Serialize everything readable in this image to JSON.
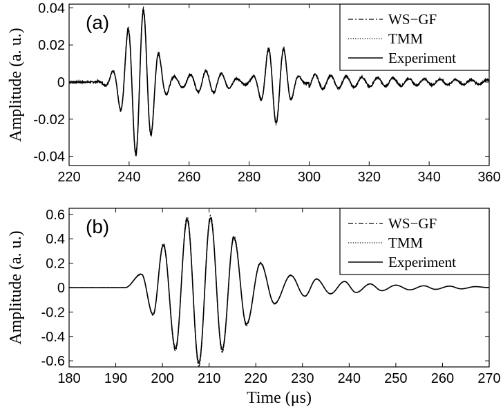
{
  "chart_data": [
    {
      "type": "line",
      "panel_label": "(a)",
      "ylabel": "Amplitude (a. u.)",
      "xlabel": "",
      "xlim": [
        220,
        360
      ],
      "ylim": [
        -0.045,
        0.042
      ],
      "x_ticks": [
        220,
        240,
        260,
        280,
        300,
        320,
        340,
        360
      ],
      "x_tick_labels": [
        "220",
        "240",
        "260",
        "280",
        "300",
        "320",
        "340",
        "360"
      ],
      "y_ticks": [
        -0.04,
        -0.02,
        0,
        0.02,
        0.04
      ],
      "y_tick_labels": [
        "-0.04",
        "-0.02",
        "0",
        "0.02",
        "0.04"
      ],
      "grid": false,
      "legend_position": "top-right",
      "series": [
        {
          "name": "WS−GF",
          "style": "dash-dot",
          "color": "#000000"
        },
        {
          "name": "TMM",
          "style": "dotted",
          "color": "#000000"
        },
        {
          "name": "Experiment",
          "style": "solid",
          "color": "#000000"
        }
      ],
      "waveform": {
        "x_start": 220,
        "x_end": 360,
        "period": 5.2,
        "segment1": {
          "center": 243.5,
          "width": 6.5,
          "amplitude": 0.04
        },
        "segment2": {
          "center": 289,
          "width": 5.5,
          "amplitude": 0.022
        },
        "tail": {
          "start": 300,
          "amplitude": 0.004
        },
        "noise": 0.0009
      }
    },
    {
      "type": "line",
      "panel_label": "(b)",
      "ylabel": "Amplitude (a. u.)",
      "xlabel": "Time (μs)",
      "xlim": [
        180,
        270
      ],
      "ylim": [
        -0.65,
        0.65
      ],
      "x_ticks": [
        180,
        190,
        200,
        210,
        220,
        230,
        240,
        250,
        260,
        270
      ],
      "x_tick_labels": [
        "180",
        "190",
        "200",
        "210",
        "220",
        "230",
        "240",
        "250",
        "260",
        "270"
      ],
      "y_ticks": [
        -0.6,
        -0.4,
        -0.2,
        0,
        0.2,
        0.4,
        0.6
      ],
      "y_tick_labels": [
        "-0.6",
        "-0.4",
        "-0.2",
        "0",
        "0.2",
        "0.4",
        "0.6"
      ],
      "grid": false,
      "legend_position": "top-right",
      "series": [
        {
          "name": "WS−GF",
          "style": "dash-dot",
          "color": "#000000"
        },
        {
          "name": "TMM",
          "style": "dotted",
          "color": "#000000"
        },
        {
          "name": "Experiment",
          "style": "solid",
          "color": "#000000"
        }
      ],
      "waveform": {
        "x_start": 180,
        "x_end": 270,
        "period": 5.2,
        "onset": 192,
        "peaks": [
          {
            "x": 195.5,
            "y": 0.11
          },
          {
            "x": 198,
            "y": -0.22
          },
          {
            "x": 200.2,
            "y": 0.35
          },
          {
            "x": 202.8,
            "y": -0.5
          },
          {
            "x": 205.3,
            "y": 0.56
          },
          {
            "x": 207.8,
            "y": -0.62
          },
          {
            "x": 210.3,
            "y": 0.57
          },
          {
            "x": 212.8,
            "y": -0.51
          },
          {
            "x": 215.3,
            "y": 0.41
          },
          {
            "x": 218,
            "y": -0.3
          },
          {
            "x": 221,
            "y": 0.2
          },
          {
            "x": 224,
            "y": -0.13
          },
          {
            "x": 227.5,
            "y": 0.1
          },
          {
            "x": 230.5,
            "y": -0.07
          },
          {
            "x": 233,
            "y": 0.07
          },
          {
            "x": 236,
            "y": -0.05
          },
          {
            "x": 239,
            "y": 0.05
          },
          {
            "x": 241.5,
            "y": -0.04
          },
          {
            "x": 244.5,
            "y": 0.03
          },
          {
            "x": 247,
            "y": -0.025
          },
          {
            "x": 250,
            "y": 0.02
          },
          {
            "x": 253,
            "y": -0.018
          },
          {
            "x": 256,
            "y": 0.015
          },
          {
            "x": 258.5,
            "y": -0.014
          },
          {
            "x": 261.5,
            "y": 0.012
          },
          {
            "x": 264,
            "y": -0.01
          },
          {
            "x": 267,
            "y": 0.008
          }
        ]
      }
    }
  ]
}
